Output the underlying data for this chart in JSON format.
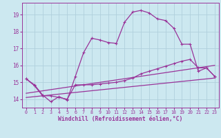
{
  "background_color": "#cce8f0",
  "grid_color": "#b0d0dc",
  "line_color": "#993399",
  "xlabel": "Windchill (Refroidissement éolien,°C)",
  "xlim": [
    -0.5,
    23.5
  ],
  "ylim": [
    13.5,
    19.7
  ],
  "yticks": [
    14,
    15,
    16,
    17,
    18,
    19
  ],
  "xticks": [
    0,
    1,
    2,
    3,
    4,
    5,
    6,
    7,
    8,
    9,
    10,
    11,
    12,
    13,
    14,
    15,
    16,
    17,
    18,
    19,
    20,
    21,
    22,
    23
  ],
  "curve1_x": [
    0,
    1,
    2,
    3,
    4,
    5,
    6,
    7,
    8,
    9,
    10,
    11,
    12,
    13,
    14,
    15,
    16,
    17,
    18,
    19,
    20,
    21,
    22,
    23
  ],
  "curve1_y": [
    15.2,
    14.85,
    14.25,
    13.85,
    14.15,
    13.95,
    15.35,
    16.75,
    17.6,
    17.5,
    17.35,
    17.3,
    18.55,
    19.15,
    19.25,
    19.1,
    18.75,
    18.65,
    18.2,
    17.25,
    17.25,
    15.65,
    15.85,
    15.35
  ],
  "curve2_x": [
    0,
    1,
    2,
    3,
    4,
    5,
    6,
    7,
    8,
    9,
    10,
    11,
    12,
    13,
    14,
    15,
    16,
    17,
    18,
    19,
    20,
    21,
    22,
    23
  ],
  "curve2_y": [
    15.2,
    14.8,
    14.2,
    14.2,
    14.1,
    14.0,
    14.85,
    14.85,
    14.85,
    14.9,
    14.95,
    15.0,
    15.1,
    15.25,
    15.5,
    15.65,
    15.8,
    15.95,
    16.1,
    16.25,
    16.35,
    15.85,
    15.85,
    15.35
  ],
  "curve3_x": [
    0,
    23
  ],
  "curve3_y": [
    14.1,
    15.25
  ],
  "curve4_x": [
    0,
    23
  ],
  "curve4_y": [
    14.35,
    16.0
  ]
}
